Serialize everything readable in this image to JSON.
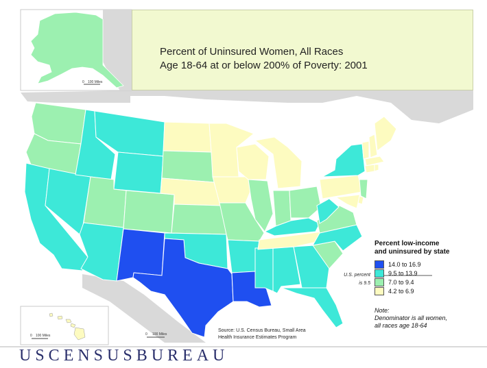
{
  "title": {
    "line1": "Percent of Uninsured Women, All Races",
    "line2": "Age 18-64 at or below 200% of Poverty: 2001"
  },
  "legend": {
    "title_line1": "Percent low-income",
    "title_line2": "and uninsured by state",
    "items": [
      {
        "label": "14.0 to 16.9",
        "color": "#1f4ff0"
      },
      {
        "label": "9.5 to 13.9",
        "color": "#3de8d8"
      },
      {
        "label": "7.0 to 9.4",
        "color": "#9cf0b0"
      },
      {
        "label": "4.2 to 6.9",
        "color": "#fdfbc0"
      }
    ],
    "us_percent_line1": "U.S. percent",
    "us_percent_line2": "is 9.5"
  },
  "note": {
    "line1": "Note:",
    "line2": "Denominator is all women,",
    "line3": "all races age 18-64"
  },
  "source": {
    "line1": "Source:  U.S. Census Bureau, Small Area",
    "line2": "Health Insurance Estimates Program"
  },
  "scales": {
    "alaska": "100 Miles",
    "hawaii": "100 Miles",
    "mainland": "100 Miles",
    "zero": "0"
  },
  "footer": {
    "agency": "USCENSUSBUREAU"
  },
  "map_colors": {
    "background_land": "#d9d9d9",
    "border": "#ffffff",
    "water": "#ffffff"
  }
}
